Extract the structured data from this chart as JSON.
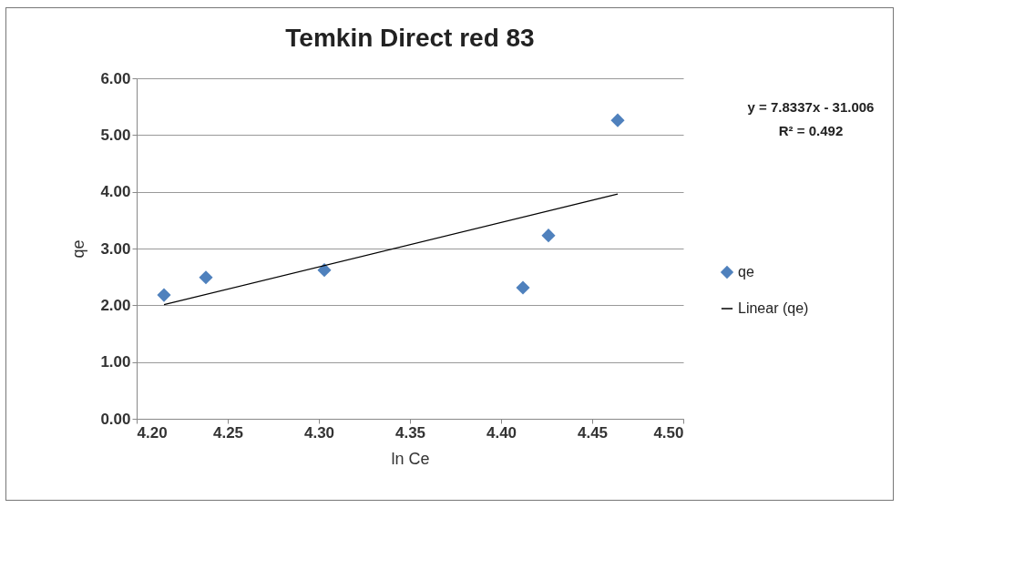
{
  "chart_data": {
    "type": "scatter",
    "title": "Temkin Direct red 83",
    "xlabel": "ln Ce",
    "ylabel": "qe",
    "xlim": [
      4.2,
      4.5
    ],
    "ylim": [
      0,
      6
    ],
    "xticks": [
      {
        "value": 4.2,
        "label": "4.20"
      },
      {
        "value": 4.25,
        "label": "4.25"
      },
      {
        "value": 4.3,
        "label": "4.30"
      },
      {
        "value": 4.35,
        "label": "4.35"
      },
      {
        "value": 4.4,
        "label": "4.40"
      },
      {
        "value": 4.45,
        "label": "4.45"
      },
      {
        "value": 4.5,
        "label": "4.50"
      }
    ],
    "yticks": [
      {
        "value": 0,
        "label": "0.00"
      },
      {
        "value": 1,
        "label": "1.00"
      },
      {
        "value": 2,
        "label": "2.00"
      },
      {
        "value": 3,
        "label": "3.00"
      },
      {
        "value": 4,
        "label": "4.00"
      },
      {
        "value": 5,
        "label": "5.00"
      },
      {
        "value": 6,
        "label": "6.00"
      }
    ],
    "grid": "y",
    "legend": "right",
    "series": [
      {
        "name": "qe",
        "marker": "diamond",
        "color": "#4f81bd",
        "x": [
          4.215,
          4.238,
          4.303,
          4.412,
          4.426,
          4.464
        ],
        "values": [
          2.18,
          2.49,
          2.62,
          2.31,
          3.23,
          5.26
        ]
      },
      {
        "name": "Linear (qe)",
        "type": "line",
        "line_style": "solid",
        "color": "#000000",
        "x": [
          4.215,
          4.464
        ],
        "values": [
          2.01,
          3.96
        ]
      }
    ],
    "annotations": [
      "y = 7.8337x - 31.006",
      "R² = 0.492"
    ]
  }
}
